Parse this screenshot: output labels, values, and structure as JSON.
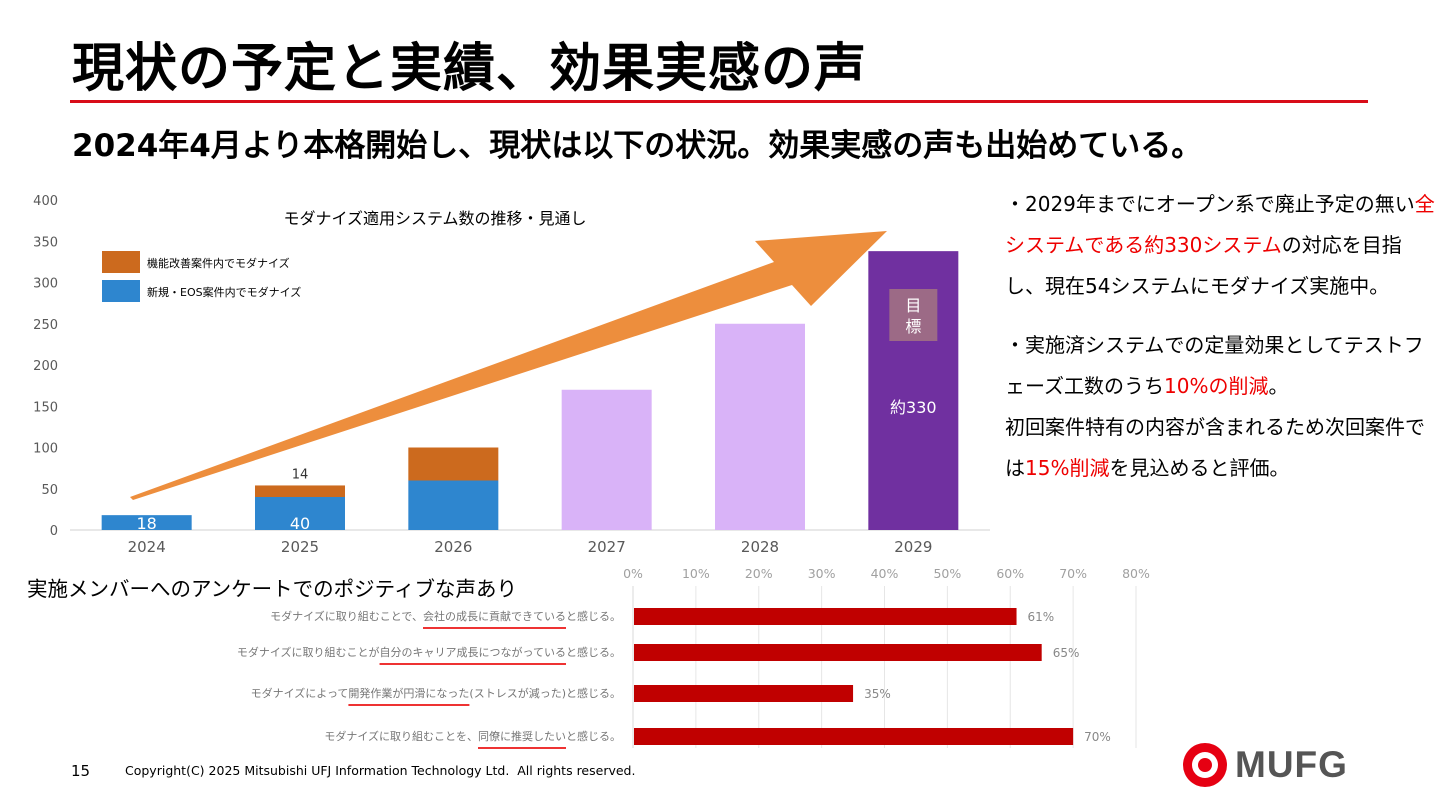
{
  "slide": {
    "title": "現状の予定と実績、効果実感の声",
    "subtitle": "2024年4月より本格開始し、現状は以下の状況。効果実感の声も出始めている。",
    "page_number": "15",
    "copyright": "Copyright(C) 2025 Mitsubishi UFJ Information Technology Ltd.  All rights reserved.",
    "logo_text": "MUFG",
    "brand_color": "#e60012"
  },
  "notes": {
    "p1": {
      "a": "・2029年までにオープン系で廃止予定の無い",
      "highlight": "全システムである約330システム",
      "b": "の対応を目指し、現在54システムにモダナイズ実施中。"
    },
    "p2": {
      "a": "・実施済システムでの定量効果としてテストフェーズ工数のうち",
      "highlight": "10%の削減",
      "b": "。"
    },
    "p3": {
      "a": "初回案件特有の内容が含まれるため次回案件では",
      "highlight": "15%削減",
      "b": "を見込めると評価。"
    }
  },
  "survey": {
    "title": "実施メンバーへのアンケートでのポジティブな声あり"
  },
  "chart_data": [
    {
      "type": "bar",
      "title": "モダナイズ適用システム数の推移・見通し",
      "categories": [
        "2024",
        "2025",
        "2026",
        "2027",
        "2028",
        "2029"
      ],
      "ylim": [
        0,
        400
      ],
      "yticks": [
        0,
        50,
        100,
        150,
        200,
        250,
        300,
        350,
        400
      ],
      "series": [
        {
          "name": "新規・EOS案件内でモダナイズ",
          "color": "#2e86cf",
          "values": [
            18,
            40,
            60,
            null,
            null,
            null
          ],
          "labels": [
            "18",
            "40",
            "",
            "",
            "",
            ""
          ]
        },
        {
          "name": "機能改善案件内でモダナイズ",
          "color": "#cc6a1e",
          "values": [
            0,
            14,
            40,
            null,
            null,
            null
          ],
          "labels": [
            "",
            "14",
            "",
            "",
            "",
            ""
          ]
        },
        {
          "name": "見通し",
          "color": "#d9b3f8",
          "values": [
            null,
            null,
            null,
            170,
            250,
            null
          ],
          "labels": [
            "",
            "",
            "",
            "",
            "",
            ""
          ]
        },
        {
          "name": "目標",
          "color": "#7030a0",
          "values": [
            null,
            null,
            null,
            null,
            null,
            338
          ],
          "labels": [
            "",
            "",
            "",
            "",
            "",
            "約330"
          ]
        }
      ],
      "target_label": "目標",
      "legend": [
        {
          "name": "機能改善案件内でモダナイズ",
          "color": "#cc6a1e"
        },
        {
          "name": "新規・EOS案件内でモダナイズ",
          "color": "#2e86cf"
        }
      ],
      "legend_position": "top-left",
      "arrow_color": "#ed8e3d"
    },
    {
      "type": "bar",
      "orientation": "horizontal",
      "xlim": [
        0,
        80
      ],
      "xticks": [
        "0%",
        "10%",
        "20%",
        "30%",
        "40%",
        "50%",
        "60%",
        "70%",
        "80%"
      ],
      "color": "#c00000",
      "categories": [
        {
          "pre": "モダナイズに取り組むことで、",
          "hl": "会社の成長に貢献できている",
          "post": "と感じる。"
        },
        {
          "pre": "モダナイズに取り組むことが",
          "hl": "自分のキャリア成長につながっている",
          "post": "と感じる。"
        },
        {
          "pre": "モダナイズによって",
          "hl": "開発作業が円滑になった",
          "post": "(ストレスが減った)と感じる。"
        },
        {
          "pre": "モダナイズに取り組むことを、",
          "hl": "同僚に推奨したい",
          "post": "と感じる。"
        }
      ],
      "values": [
        61,
        65,
        35,
        70
      ],
      "value_labels": [
        "61%",
        "65%",
        "35%",
        "70%"
      ]
    }
  ]
}
